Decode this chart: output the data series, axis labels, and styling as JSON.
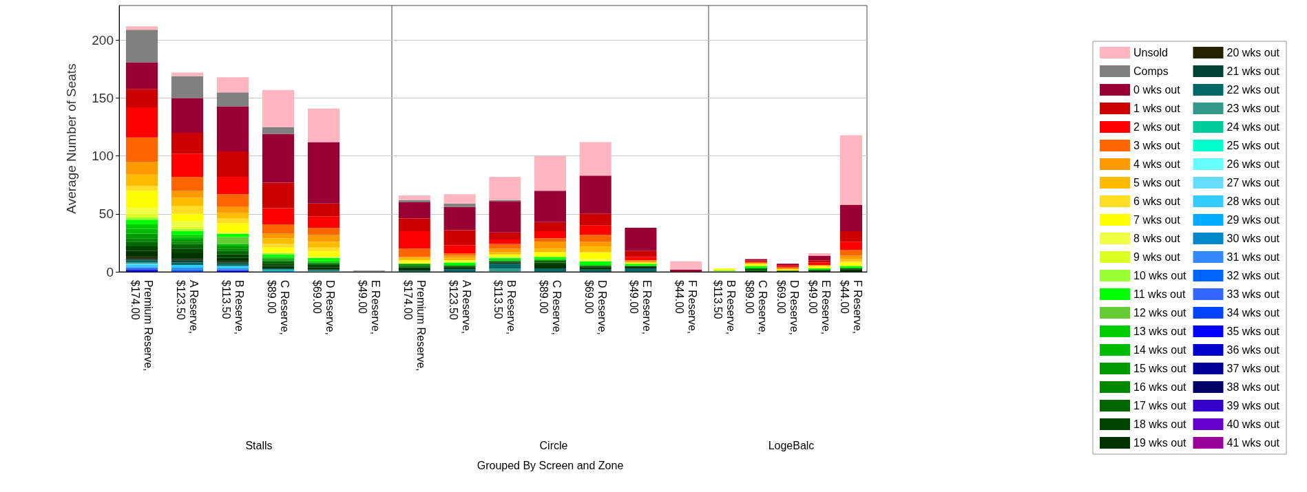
{
  "chart_data": [
    {
      "type": "bar",
      "stacked": true,
      "title": "Stalls",
      "ylabel": "Average Number of Seats",
      "ylim": [
        0,
        230
      ],
      "yticks": [
        0,
        50,
        100,
        150,
        200
      ],
      "grid": "y",
      "legend": false,
      "categories": [
        "Premium Reserve, $174.00",
        "A Reserve, $123.50",
        "B Reserve, $113.50",
        "C Reserve, $89.00",
        "D Reserve, $69.00",
        "E Reserve, $49.00"
      ],
      "series": [
        {
          "color": "#990099",
          "values": [
            0,
            0,
            0,
            0,
            0,
            0
          ]
        },
        {
          "color": "#0000cc",
          "values": [
            1,
            0,
            0,
            0,
            0,
            0
          ]
        },
        {
          "color": "#0000ff",
          "values": [
            1,
            0,
            1,
            0,
            0,
            0
          ]
        },
        {
          "color": "#0044ff",
          "values": [
            0,
            1,
            0,
            0,
            0,
            0
          ]
        },
        {
          "color": "#3366ff",
          "values": [
            1,
            0,
            1,
            0,
            0,
            0
          ]
        },
        {
          "color": "#0066ff",
          "values": [
            0,
            1,
            0,
            0,
            0,
            0
          ]
        },
        {
          "color": "#3388ff",
          "values": [
            1,
            1,
            1,
            0,
            0,
            0
          ]
        },
        {
          "color": "#0088cc",
          "values": [
            0,
            0,
            0,
            1,
            0,
            0
          ]
        },
        {
          "color": "#00aaff",
          "values": [
            0,
            1,
            0,
            0,
            0,
            0
          ]
        },
        {
          "color": "#33ccff",
          "values": [
            2,
            2,
            2,
            0,
            0,
            0
          ]
        },
        {
          "color": "#66ddff",
          "values": [
            1,
            0,
            0,
            0,
            0,
            0
          ]
        },
        {
          "color": "#00cc99",
          "values": [
            0,
            0,
            0,
            1,
            0,
            0
          ]
        },
        {
          "color": "#339988",
          "values": [
            1,
            0,
            0,
            0,
            1,
            0
          ]
        },
        {
          "color": "#006666",
          "values": [
            2,
            2,
            2,
            1,
            1,
            0
          ]
        },
        {
          "color": "#004433",
          "values": [
            1,
            2,
            1,
            0,
            0,
            0
          ]
        },
        {
          "color": "#222200",
          "values": [
            2,
            1,
            1,
            0,
            0,
            0
          ]
        },
        {
          "color": "#003300",
          "values": [
            5,
            5,
            3,
            2,
            2,
            0
          ]
        },
        {
          "color": "#004400",
          "values": [
            4,
            4,
            3,
            2,
            2,
            0
          ]
        },
        {
          "color": "#006600",
          "values": [
            4,
            4,
            3,
            2,
            1,
            0
          ]
        },
        {
          "color": "#008800",
          "values": [
            3,
            2,
            2,
            1,
            0,
            0
          ]
        },
        {
          "color": "#009900",
          "values": [
            4,
            2,
            2,
            1,
            1,
            0
          ]
        },
        {
          "color": "#00bb00",
          "values": [
            4,
            2,
            2,
            1,
            1,
            0
          ]
        },
        {
          "color": "#00cc00",
          "values": [
            4,
            2,
            0,
            1,
            0,
            0
          ]
        },
        {
          "color": "#66cc33",
          "values": [
            0,
            0,
            6,
            0,
            0,
            0
          ]
        },
        {
          "color": "#00ff00",
          "values": [
            4,
            3,
            3,
            2,
            3,
            0
          ]
        },
        {
          "color": "#99ff33",
          "values": [
            2,
            2,
            0,
            1,
            0,
            0
          ]
        },
        {
          "color": "#ddff22",
          "values": [
            3,
            2,
            0,
            1,
            0,
            0
          ]
        },
        {
          "color": "#eeff44",
          "values": [
            5,
            5,
            1,
            0,
            1,
            0
          ]
        },
        {
          "color": "#ffff00",
          "values": [
            15,
            6,
            8,
            4,
            5,
            0
          ]
        },
        {
          "color": "#ffdd22",
          "values": [
            4,
            7,
            4,
            3,
            3,
            0
          ]
        },
        {
          "color": "#ffbb00",
          "values": [
            10,
            7,
            5,
            5,
            5,
            0
          ]
        },
        {
          "color": "#ff9900",
          "values": [
            11,
            6,
            5,
            4,
            6,
            0
          ]
        },
        {
          "color": "#ff6600",
          "values": [
            21,
            12,
            11,
            8,
            6,
            0
          ]
        },
        {
          "color": "#ff0000",
          "values": [
            26,
            20,
            15,
            14,
            10,
            0
          ]
        },
        {
          "color": "#cc0000",
          "values": [
            16,
            18,
            22,
            22,
            11,
            0
          ]
        },
        {
          "color": "#990033",
          "values": [
            23,
            30,
            39,
            42,
            53,
            0
          ]
        },
        {
          "color": "#808080",
          "values": [
            28,
            19,
            12,
            6,
            0,
            1
          ]
        },
        {
          "color": "#ffb6c1",
          "values": [
            3,
            3,
            13,
            32,
            29,
            0
          ]
        }
      ]
    },
    {
      "type": "bar",
      "stacked": true,
      "title": "Circle",
      "xlabel": "Grouped By Screen and Zone",
      "ylim": [
        0,
        230
      ],
      "yticks": [
        0,
        50,
        100,
        150,
        200
      ],
      "grid": "y",
      "legend": false,
      "tick_labels": "x",
      "categories": [
        "Premium Reserve, $174.00",
        "A Reserve, $123.50",
        "B Reserve, $113.50",
        "C Reserve, $89.00",
        "D Reserve, $69.00",
        "E Reserve, $49.00",
        "F Reserve, $44.00"
      ],
      "series": [
        {
          "color": "#339988",
          "values": [
            0,
            0,
            3,
            0,
            0,
            0,
            0
          ]
        },
        {
          "color": "#006666",
          "values": [
            1,
            2,
            4,
            3,
            2,
            3,
            0
          ]
        },
        {
          "color": "#004433",
          "values": [
            0,
            1,
            0,
            0,
            0,
            0,
            0
          ]
        },
        {
          "color": "#003300",
          "values": [
            2,
            1,
            1,
            3,
            2,
            2,
            0
          ]
        },
        {
          "color": "#004400",
          "values": [
            1,
            1,
            1,
            2,
            1,
            0,
            0
          ]
        },
        {
          "color": "#006600",
          "values": [
            1,
            0,
            0,
            2,
            0,
            0,
            0
          ]
        },
        {
          "color": "#008800",
          "values": [
            1,
            0,
            0,
            0,
            0,
            0,
            0
          ]
        },
        {
          "color": "#009900",
          "values": [
            1,
            0,
            0,
            0,
            0,
            0,
            0
          ]
        },
        {
          "color": "#00bb00",
          "values": [
            0,
            1,
            1,
            0,
            1,
            0,
            0
          ]
        },
        {
          "color": "#00cc00",
          "values": [
            0,
            0,
            1,
            1,
            0,
            0,
            0
          ]
        },
        {
          "color": "#00ff00",
          "values": [
            0,
            2,
            1,
            2,
            3,
            2,
            0
          ]
        },
        {
          "color": "#ddff22",
          "values": [
            1,
            1,
            1,
            0,
            0,
            0,
            0
          ]
        },
        {
          "color": "#eeff44",
          "values": [
            0,
            0,
            0,
            0,
            2,
            0,
            0
          ]
        },
        {
          "color": "#ffff00",
          "values": [
            2,
            1,
            2,
            4,
            6,
            1,
            0
          ]
        },
        {
          "color": "#ffbb00",
          "values": [
            2,
            2,
            2,
            3,
            5,
            0,
            0
          ]
        },
        {
          "color": "#ff9900",
          "values": [
            1,
            2,
            3,
            6,
            4,
            2,
            0
          ]
        },
        {
          "color": "#ff6600",
          "values": [
            7,
            2,
            4,
            3,
            6,
            0,
            0
          ]
        },
        {
          "color": "#ff0000",
          "values": [
            15,
            7,
            4,
            6,
            8,
            3,
            0
          ]
        },
        {
          "color": "#cc0000",
          "values": [
            11,
            13,
            6,
            8,
            10,
            5,
            0
          ]
        },
        {
          "color": "#990033",
          "values": [
            14,
            20,
            27,
            27,
            33,
            20,
            2
          ]
        },
        {
          "color": "#808080",
          "values": [
            2,
            3,
            1,
            0,
            0,
            0,
            0
          ]
        },
        {
          "color": "#ffb6c1",
          "values": [
            4,
            8,
            20,
            30,
            29,
            0,
            7
          ]
        }
      ]
    },
    {
      "type": "bar",
      "stacked": true,
      "title": "LogeBalc",
      "ylim": [
        0,
        230
      ],
      "yticks": [
        0,
        50,
        100,
        150,
        200
      ],
      "grid": "y",
      "legend": "right",
      "tick_labels": "x",
      "categories": [
        "B Reserve, $113.50",
        "C Reserve, $89.00",
        "D Reserve, $69.00",
        "E Reserve, $49.00",
        "F Reserve, $44.00"
      ],
      "series": [
        {
          "name": "41 wks out",
          "color": "#990099",
          "values": [
            0,
            0,
            0,
            0,
            0
          ]
        },
        {
          "name": "40 wks out",
          "color": "#6600cc",
          "values": [
            0,
            0,
            0,
            0,
            0
          ]
        },
        {
          "name": "39 wks out",
          "color": "#3300cc",
          "values": [
            0,
            0,
            0,
            0,
            0
          ]
        },
        {
          "name": "38 wks out",
          "color": "#000066",
          "values": [
            0,
            0,
            0,
            0,
            0
          ]
        },
        {
          "name": "37 wks out",
          "color": "#000099",
          "values": [
            0,
            0,
            0,
            0,
            0
          ]
        },
        {
          "name": "36 wks out",
          "color": "#0000cc",
          "values": [
            0,
            0,
            0,
            0,
            0
          ]
        },
        {
          "name": "35 wks out",
          "color": "#0000ff",
          "values": [
            0,
            0,
            0,
            0,
            0
          ]
        },
        {
          "name": "34 wks out",
          "color": "#0044ff",
          "values": [
            0,
            0,
            0,
            0,
            0
          ]
        },
        {
          "name": "33 wks out",
          "color": "#3366ff",
          "values": [
            0,
            0,
            0,
            0,
            0
          ]
        },
        {
          "name": "32 wks out",
          "color": "#0066ff",
          "values": [
            0,
            0,
            0,
            0,
            0
          ]
        },
        {
          "name": "31 wks out",
          "color": "#3388ff",
          "values": [
            0,
            0,
            0,
            0,
            0
          ]
        },
        {
          "name": "30 wks out",
          "color": "#0088cc",
          "values": [
            0,
            0,
            0,
            0,
            0
          ]
        },
        {
          "name": "29 wks out",
          "color": "#00aaff",
          "values": [
            0,
            0,
            0,
            0,
            0
          ]
        },
        {
          "name": "28 wks out",
          "color": "#33ccff",
          "values": [
            0,
            0,
            0,
            0,
            0
          ]
        },
        {
          "name": "27 wks out",
          "color": "#66ddff",
          "values": [
            0,
            0,
            0,
            0,
            0
          ]
        },
        {
          "name": "26 wks out",
          "color": "#66ffff",
          "values": [
            0,
            0,
            0,
            0,
            0
          ]
        },
        {
          "name": "25 wks out",
          "color": "#00ffcc",
          "values": [
            0,
            0,
            0,
            0,
            0
          ]
        },
        {
          "name": "24 wks out",
          "color": "#00cc99",
          "values": [
            0,
            0,
            0,
            0,
            0
          ]
        },
        {
          "name": "23 wks out",
          "color": "#339988",
          "values": [
            0,
            0,
            0,
            0,
            0
          ]
        },
        {
          "name": "22 wks out",
          "color": "#006666",
          "values": [
            0,
            0,
            0,
            0,
            0
          ]
        },
        {
          "name": "21 wks out",
          "color": "#004433",
          "values": [
            0,
            0,
            0,
            0,
            0
          ]
        },
        {
          "name": "20 wks out",
          "color": "#222200",
          "values": [
            0,
            0,
            0,
            0,
            0
          ]
        },
        {
          "name": "19 wks out",
          "color": "#003300",
          "values": [
            0,
            1,
            0,
            1,
            2
          ]
        },
        {
          "name": "18 wks out",
          "color": "#004400",
          "values": [
            0,
            0,
            1,
            0,
            1
          ]
        },
        {
          "name": "17 wks out",
          "color": "#006600",
          "values": [
            0,
            2,
            0,
            1,
            0
          ]
        },
        {
          "name": "16 wks out",
          "color": "#008800",
          "values": [
            0,
            0,
            0,
            0,
            0
          ]
        },
        {
          "name": "15 wks out",
          "color": "#009900",
          "values": [
            0,
            0,
            0,
            0,
            0
          ]
        },
        {
          "name": "14 wks out",
          "color": "#00bb00",
          "values": [
            0,
            0,
            0,
            0,
            0
          ]
        },
        {
          "name": "13 wks out",
          "color": "#00cc00",
          "values": [
            0,
            0,
            0,
            0,
            0
          ]
        },
        {
          "name": "12 wks out",
          "color": "#66cc33",
          "values": [
            1,
            0,
            0,
            0,
            0
          ]
        },
        {
          "name": "11 wks out",
          "color": "#00ff00",
          "values": [
            0,
            2,
            0,
            1,
            2
          ]
        },
        {
          "name": "10 wks out",
          "color": "#99ff33",
          "values": [
            0,
            0,
            0,
            0,
            0
          ]
        },
        {
          "name": "9 wks out",
          "color": "#ddff22",
          "values": [
            1,
            0,
            0,
            0,
            0
          ]
        },
        {
          "name": "8 wks out",
          "color": "#eeff44",
          "values": [
            0,
            0,
            0,
            0,
            0
          ]
        },
        {
          "name": "7 wks out",
          "color": "#ffff00",
          "values": [
            1,
            2,
            1,
            2,
            3
          ]
        },
        {
          "name": "6 wks out",
          "color": "#ffdd22",
          "values": [
            0,
            0,
            0,
            0,
            1
          ]
        },
        {
          "name": "5 wks out",
          "color": "#ffbb00",
          "values": [
            0,
            0,
            1,
            0,
            2
          ]
        },
        {
          "name": "4 wks out",
          "color": "#ff9900",
          "values": [
            0,
            1,
            0,
            1,
            3
          ]
        },
        {
          "name": "3 wks out",
          "color": "#ff6600",
          "values": [
            0,
            0,
            1,
            0,
            5
          ]
        },
        {
          "name": "2 wks out",
          "color": "#ff0000",
          "values": [
            0,
            1,
            1,
            2,
            7
          ]
        },
        {
          "name": "1 wks out",
          "color": "#cc0000",
          "values": [
            0,
            1,
            1,
            2,
            9
          ]
        },
        {
          "name": "0 wks out",
          "color": "#990033",
          "values": [
            0,
            1,
            1,
            4,
            23
          ]
        },
        {
          "name": "Comps",
          "color": "#808080",
          "values": [
            0,
            0,
            0,
            0,
            0
          ]
        },
        {
          "name": "Unsold",
          "color": "#ffb6c1",
          "values": [
            0,
            0,
            0,
            2,
            60
          ]
        }
      ]
    }
  ]
}
